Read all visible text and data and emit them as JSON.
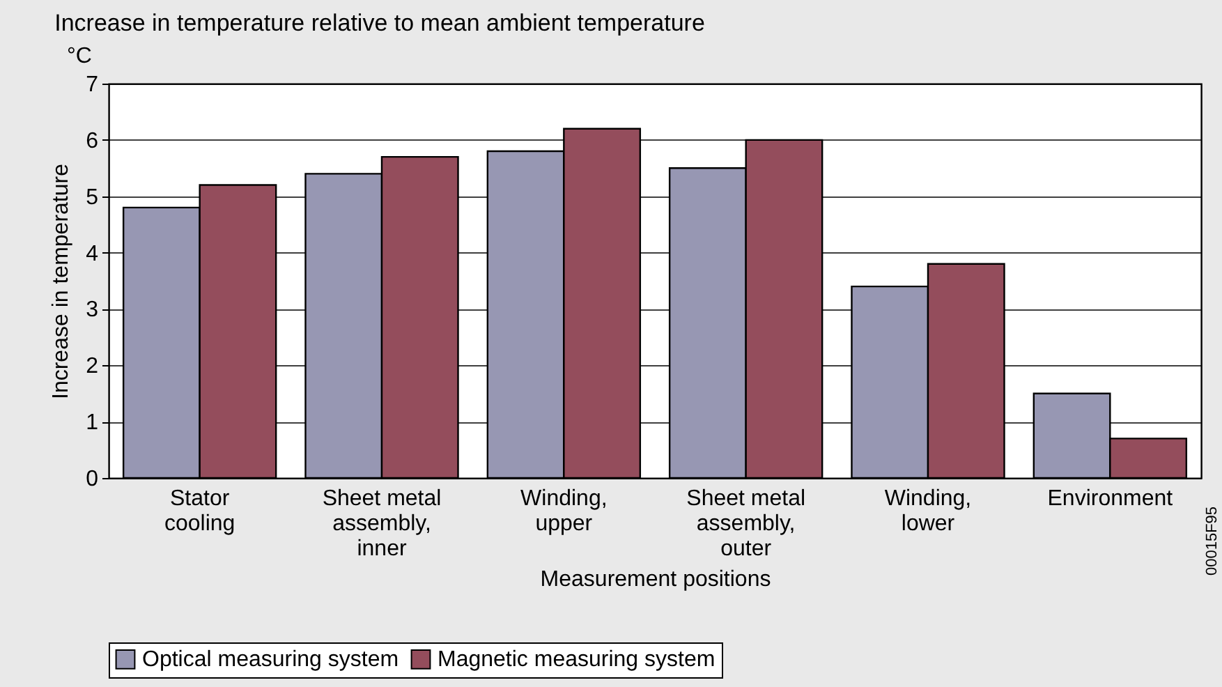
{
  "chart_data": {
    "type": "bar",
    "title": "Increase in temperature relative to mean ambient temperature",
    "xlabel": "Measurement positions",
    "ylabel": "Increase in temperature",
    "categories": [
      "Stator cooling",
      "Sheet metal assembly, inner",
      "Winding, upper",
      "Sheet metal assembly, outer",
      "Winding, lower",
      "Environment"
    ],
    "series": [
      {
        "name": "Optical measuring system",
        "color": "#9797b3",
        "values": [
          4.8,
          5.4,
          5.8,
          5.5,
          3.4,
          1.5
        ]
      },
      {
        "name": "Magnetic measuring system",
        "color": "#944d5c",
        "values": [
          5.2,
          5.7,
          6.2,
          6.0,
          3.8,
          0.7
        ]
      }
    ],
    "ylim": [
      0,
      7
    ],
    "yticks": [
      0,
      1,
      2,
      3,
      4,
      5,
      6,
      7
    ],
    "grid": "y",
    "legend": "bottom",
    "annotations": [
      "°C",
      "00015F95"
    ]
  }
}
